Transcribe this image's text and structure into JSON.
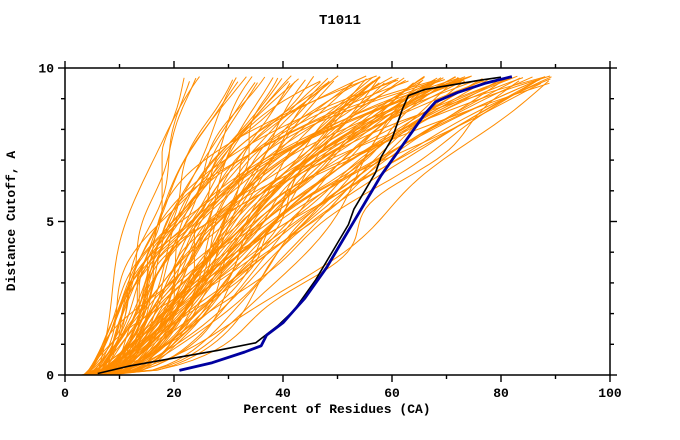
{
  "chart_data": {
    "type": "line",
    "title": "T1011",
    "xlabel": "Percent of Residues (CA)",
    "ylabel": "Distance Cutoff, A",
    "xlim": [
      0,
      100
    ],
    "ylim": [
      0,
      10
    ],
    "x_major_ticks": [
      0,
      20,
      40,
      60,
      80,
      100
    ],
    "x_minor_ticks": [
      10,
      30,
      50,
      70,
      90
    ],
    "y_major_ticks": [
      0,
      5,
      10
    ],
    "y_minor_ticks": [
      1,
      2,
      3,
      4,
      6,
      7,
      8,
      9
    ],
    "grid": false,
    "legend": null,
    "background_color": "#ffffff",
    "axis_color": "#000000",
    "series": [
      {
        "name": "reference-curve-black",
        "color": "#000000",
        "width": 1.6,
        "points": [
          [
            6,
            0.05
          ],
          [
            12,
            0.3
          ],
          [
            20,
            0.55
          ],
          [
            28,
            0.8
          ],
          [
            35,
            1.05
          ],
          [
            39,
            1.6
          ],
          [
            42,
            2.1
          ],
          [
            44,
            2.6
          ],
          [
            46,
            3.1
          ],
          [
            48,
            3.7
          ],
          [
            50,
            4.3
          ],
          [
            52,
            4.9
          ],
          [
            53,
            5.4
          ],
          [
            55,
            6.0
          ],
          [
            57,
            6.6
          ],
          [
            58,
            7.1
          ],
          [
            60,
            7.7
          ],
          [
            61,
            8.2
          ],
          [
            62,
            8.7
          ],
          [
            63,
            9.1
          ],
          [
            66,
            9.3
          ],
          [
            71,
            9.45
          ],
          [
            76,
            9.6
          ],
          [
            80,
            9.7
          ]
        ]
      },
      {
        "name": "highlighted-model-curve-blue",
        "color": "#0000a0",
        "width": 2.8,
        "points": [
          [
            21,
            0.15
          ],
          [
            27,
            0.4
          ],
          [
            33,
            0.75
          ],
          [
            36,
            0.95
          ],
          [
            37,
            1.3
          ],
          [
            40,
            1.7
          ],
          [
            42,
            2.1
          ],
          [
            44,
            2.5
          ],
          [
            46,
            3.0
          ],
          [
            48,
            3.5
          ],
          [
            50,
            4.1
          ],
          [
            52,
            4.7
          ],
          [
            54,
            5.3
          ],
          [
            56,
            5.9
          ],
          [
            58,
            6.5
          ],
          [
            60,
            7.0
          ],
          [
            62,
            7.5
          ],
          [
            64,
            8.0
          ],
          [
            66,
            8.5
          ],
          [
            68,
            8.9
          ],
          [
            72,
            9.2
          ],
          [
            77,
            9.5
          ],
          [
            82,
            9.72
          ]
        ]
      }
    ],
    "ensemble": {
      "name": "server-model-curves-orange",
      "color": "#ff8c00",
      "width": 1,
      "count": 105,
      "seed": 20111,
      "x_start_range": [
        3,
        9
      ],
      "x_top_range": [
        13,
        90
      ],
      "y_top_max": 9.75
    }
  }
}
